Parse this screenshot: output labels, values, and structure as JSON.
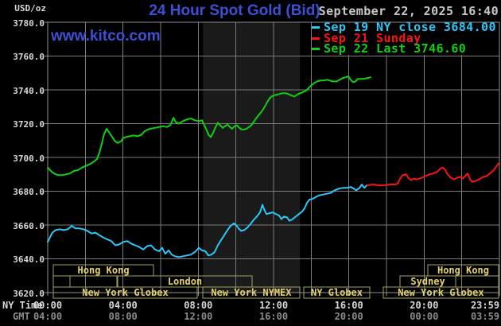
{
  "header": {
    "units": "USD/oz",
    "title": "24 Hour Spot Gold (Bid)",
    "timestamp": "September 22, 2025 16:40",
    "watermark": "www.kitco.com"
  },
  "colors": {
    "background": "#000000",
    "title_blue": "#3c50d7",
    "grid": "#7b7b7b",
    "border": "#8f8f8f",
    "band": "#1a1a1a",
    "cyan": "#2bc7f7",
    "red": "#f81414",
    "green": "#0ed10e",
    "session_border": "#a2a263",
    "session_text": "#e5d26b",
    "axis_text": "#d8d8d8",
    "gmt_text": "#8c8c8c",
    "timestamp_text": "#c9c9c9"
  },
  "legend": {
    "items": [
      {
        "label": "Sep 19 NY close 3684.00",
        "color": "#2bc7f7"
      },
      {
        "label": "Sep 21 Sunday",
        "color": "#f81414"
      },
      {
        "label": "Sep 22 Last 3746.60",
        "color": "#0ed10e"
      }
    ]
  },
  "axes": {
    "x_rows": [
      {
        "label": "NY Time",
        "ticks": [
          "00:00",
          "04:00",
          "08:00",
          "12:00",
          "16:00",
          "20:00",
          "23:59"
        ]
      },
      {
        "label": "GMT",
        "ticks": [
          "04:00",
          "08:00",
          "12:00",
          "16:00",
          "20:00",
          "00:00",
          "03:59"
        ]
      }
    ]
  },
  "chart_data": {
    "type": "line",
    "title": "24 Hour Spot Gold (Bid)",
    "ylabel": "USD/oz",
    "xlabel": "NY Time (hours 00:00-23:59)",
    "ylim": [
      3620,
      3780
    ],
    "y_step": 20,
    "xlim_hours": [
      0,
      24
    ],
    "x_gridline_every_hours": 2,
    "grid": true,
    "legend_position": "top-right",
    "highlight_band_hours": [
      8.25,
      13.4
    ],
    "series": [
      {
        "name": "Sep 19 NY close 3684.00",
        "color": "#2bc7f7",
        "points": [
          [
            0,
            3650
          ],
          [
            0.13,
            3653
          ],
          [
            0.25,
            3655.5
          ],
          [
            0.42,
            3657
          ],
          [
            0.63,
            3657.5
          ],
          [
            0.85,
            3657
          ],
          [
            1.06,
            3657.5
          ],
          [
            1.27,
            3659.5
          ],
          [
            1.48,
            3658
          ],
          [
            1.69,
            3658
          ],
          [
            1.9,
            3657.5
          ],
          [
            2.11,
            3656.5
          ],
          [
            2.32,
            3655
          ],
          [
            2.54,
            3655.5
          ],
          [
            2.75,
            3654
          ],
          [
            2.96,
            3652.5
          ],
          [
            3.17,
            3651.5
          ],
          [
            3.38,
            3650.5
          ],
          [
            3.59,
            3648
          ],
          [
            3.8,
            3648.5
          ],
          [
            4.01,
            3650
          ],
          [
            4.23,
            3650.5
          ],
          [
            4.44,
            3649
          ],
          [
            4.65,
            3648
          ],
          [
            4.86,
            3647
          ],
          [
            5.07,
            3645.5
          ],
          [
            5.28,
            3647.5
          ],
          [
            5.49,
            3648
          ],
          [
            5.7,
            3645.5
          ],
          [
            5.92,
            3644.5
          ],
          [
            6.08,
            3646.5
          ],
          [
            6.25,
            3643
          ],
          [
            6.42,
            3645
          ],
          [
            6.59,
            3642.5
          ],
          [
            6.76,
            3641.5
          ],
          [
            6.97,
            3641
          ],
          [
            7.18,
            3641.5
          ],
          [
            7.39,
            3642
          ],
          [
            7.61,
            3642.5
          ],
          [
            7.82,
            3644
          ],
          [
            8.03,
            3646.5
          ],
          [
            8.2,
            3645
          ],
          [
            8.37,
            3644.5
          ],
          [
            8.54,
            3642
          ],
          [
            8.7,
            3642.5
          ],
          [
            8.87,
            3644
          ],
          [
            9.04,
            3648
          ],
          [
            9.21,
            3651
          ],
          [
            9.38,
            3654
          ],
          [
            9.55,
            3657
          ],
          [
            9.72,
            3659.5
          ],
          [
            9.89,
            3661
          ],
          [
            10.01,
            3660
          ],
          [
            10.14,
            3658
          ],
          [
            10.27,
            3656.5
          ],
          [
            10.44,
            3657
          ],
          [
            10.61,
            3658.5
          ],
          [
            10.77,
            3660.5
          ],
          [
            10.94,
            3663
          ],
          [
            11.11,
            3665
          ],
          [
            11.28,
            3667.5
          ],
          [
            11.41,
            3672
          ],
          [
            11.49,
            3669.5
          ],
          [
            11.62,
            3666.5
          ],
          [
            11.79,
            3667
          ],
          [
            11.96,
            3667.5
          ],
          [
            12.13,
            3666.5
          ],
          [
            12.3,
            3665.5
          ],
          [
            12.42,
            3663.5
          ],
          [
            12.55,
            3665
          ],
          [
            12.72,
            3664.5
          ],
          [
            12.84,
            3662.5
          ],
          [
            13.01,
            3663.5
          ],
          [
            13.18,
            3665
          ],
          [
            13.35,
            3666.5
          ],
          [
            13.52,
            3668
          ],
          [
            13.65,
            3670
          ],
          [
            13.77,
            3673
          ],
          [
            13.9,
            3675
          ],
          [
            14.07,
            3675.5
          ],
          [
            14.24,
            3676.5
          ],
          [
            14.41,
            3677.5
          ],
          [
            14.62,
            3678
          ],
          [
            14.83,
            3678.5
          ],
          [
            15.04,
            3679
          ],
          [
            15.25,
            3680.5
          ],
          [
            15.46,
            3681.5
          ],
          [
            15.68,
            3682
          ],
          [
            15.89,
            3682
          ],
          [
            16.1,
            3682.5
          ],
          [
            16.27,
            3681.5
          ],
          [
            16.39,
            3680.5
          ],
          [
            16.57,
            3682
          ],
          [
            16.69,
            3684
          ],
          [
            16.82,
            3682
          ],
          [
            16.95,
            3683.5
          ]
        ]
      },
      {
        "name": "Sep 21 Sunday",
        "color": "#f81414",
        "points": [
          [
            16.99,
            3683.5
          ],
          [
            17.3,
            3684
          ],
          [
            17.6,
            3683.5
          ],
          [
            17.9,
            3683.5
          ],
          [
            18.2,
            3684
          ],
          [
            18.45,
            3684
          ],
          [
            18.59,
            3684.5
          ],
          [
            18.7,
            3687
          ],
          [
            18.85,
            3689.5
          ],
          [
            19.05,
            3690
          ],
          [
            19.15,
            3688
          ],
          [
            19.3,
            3686.5
          ],
          [
            19.45,
            3687.5
          ],
          [
            19.6,
            3687
          ],
          [
            19.75,
            3687.5
          ],
          [
            19.9,
            3688
          ],
          [
            20.07,
            3689
          ],
          [
            20.28,
            3690
          ],
          [
            20.49,
            3690.5
          ],
          [
            20.7,
            3691.5
          ],
          [
            20.87,
            3693.5
          ],
          [
            21,
            3694
          ],
          [
            21.13,
            3692.5
          ],
          [
            21.25,
            3690
          ],
          [
            21.42,
            3688
          ],
          [
            21.59,
            3687
          ],
          [
            21.76,
            3688
          ],
          [
            21.93,
            3688.5
          ],
          [
            22.06,
            3687.5
          ],
          [
            22.18,
            3689
          ],
          [
            22.31,
            3690.5
          ],
          [
            22.44,
            3687
          ],
          [
            22.56,
            3685.5
          ],
          [
            22.69,
            3686
          ],
          [
            22.82,
            3686.5
          ],
          [
            22.99,
            3687.5
          ],
          [
            23.16,
            3688.5
          ],
          [
            23.33,
            3689
          ],
          [
            23.49,
            3690.5
          ],
          [
            23.66,
            3692
          ],
          [
            23.83,
            3694.5
          ],
          [
            23.96,
            3696.5
          ]
        ]
      },
      {
        "name": "Sep 22 Last 3746.60",
        "color": "#0ed10e",
        "points": [
          [
            0,
            3694
          ],
          [
            0.17,
            3692
          ],
          [
            0.34,
            3690.5
          ],
          [
            0.55,
            3689.5
          ],
          [
            0.76,
            3689.5
          ],
          [
            0.97,
            3690
          ],
          [
            1.18,
            3690.5
          ],
          [
            1.39,
            3692
          ],
          [
            1.61,
            3692.5
          ],
          [
            1.82,
            3694
          ],
          [
            2.03,
            3695
          ],
          [
            2.24,
            3696
          ],
          [
            2.45,
            3697.5
          ],
          [
            2.62,
            3699
          ],
          [
            2.75,
            3703
          ],
          [
            2.87,
            3708
          ],
          [
            3,
            3714
          ],
          [
            3.13,
            3717
          ],
          [
            3.25,
            3715
          ],
          [
            3.38,
            3713
          ],
          [
            3.55,
            3710
          ],
          [
            3.72,
            3708.5
          ],
          [
            3.89,
            3709.5
          ],
          [
            4.01,
            3711.5
          ],
          [
            4.14,
            3712
          ],
          [
            4.35,
            3712.5
          ],
          [
            4.56,
            3713
          ],
          [
            4.77,
            3712.5
          ],
          [
            4.99,
            3713.5
          ],
          [
            5.15,
            3715.5
          ],
          [
            5.32,
            3716.5
          ],
          [
            5.49,
            3717
          ],
          [
            5.7,
            3717.5
          ],
          [
            5.92,
            3718
          ],
          [
            6.13,
            3718.5
          ],
          [
            6.34,
            3718
          ],
          [
            6.51,
            3719
          ],
          [
            6.68,
            3723.5
          ],
          [
            6.8,
            3721
          ],
          [
            6.97,
            3720
          ],
          [
            7.18,
            3721.5
          ],
          [
            7.39,
            3722.5
          ],
          [
            7.61,
            3723
          ],
          [
            7.82,
            3722
          ],
          [
            8.03,
            3721.5
          ],
          [
            8.2,
            3722
          ],
          [
            8.32,
            3719
          ],
          [
            8.45,
            3716
          ],
          [
            8.54,
            3713.5
          ],
          [
            8.66,
            3712
          ],
          [
            8.79,
            3714.5
          ],
          [
            8.92,
            3718
          ],
          [
            9.04,
            3720.5
          ],
          [
            9.17,
            3719
          ],
          [
            9.3,
            3717.5
          ],
          [
            9.42,
            3718.5
          ],
          [
            9.55,
            3719.5
          ],
          [
            9.68,
            3718
          ],
          [
            9.8,
            3717
          ],
          [
            9.93,
            3718.5
          ],
          [
            10.06,
            3719
          ],
          [
            10.18,
            3717.5
          ],
          [
            10.31,
            3716.5
          ],
          [
            10.44,
            3716.5
          ],
          [
            10.56,
            3717
          ],
          [
            10.69,
            3718
          ],
          [
            10.82,
            3719
          ],
          [
            10.94,
            3721
          ],
          [
            11.07,
            3723
          ],
          [
            11.2,
            3725
          ],
          [
            11.32,
            3726.5
          ],
          [
            11.45,
            3728.5
          ],
          [
            11.58,
            3731
          ],
          [
            11.7,
            3733.5
          ],
          [
            11.83,
            3735.5
          ],
          [
            11.96,
            3736.5
          ],
          [
            12.13,
            3737
          ],
          [
            12.3,
            3737.5
          ],
          [
            12.46,
            3738
          ],
          [
            12.68,
            3738
          ],
          [
            12.89,
            3737
          ],
          [
            13.1,
            3736
          ],
          [
            13.31,
            3737.5
          ],
          [
            13.52,
            3738.5
          ],
          [
            13.73,
            3739.5
          ],
          [
            13.94,
            3742
          ],
          [
            14.15,
            3744
          ],
          [
            14.32,
            3745
          ],
          [
            14.49,
            3745.5
          ],
          [
            14.66,
            3745.5
          ],
          [
            14.83,
            3746
          ],
          [
            15,
            3745.5
          ],
          [
            15.17,
            3745
          ],
          [
            15.34,
            3745
          ],
          [
            15.51,
            3746
          ],
          [
            15.68,
            3747
          ],
          [
            15.84,
            3747.5
          ],
          [
            15.97,
            3748
          ],
          [
            16.1,
            3746
          ],
          [
            16.23,
            3744.5
          ],
          [
            16.35,
            3745
          ],
          [
            16.48,
            3746.5
          ],
          [
            16.65,
            3746.5
          ],
          [
            16.82,
            3746.5
          ],
          [
            16.99,
            3747
          ],
          [
            17.15,
            3747.5
          ]
        ]
      }
    ],
    "sessions": {
      "rows": [
        {
          "items": [
            {
              "label": "Hong Kong",
              "start": 0.3,
              "end": 5.62
            },
            {
              "label": "Hong Kong",
              "start": 20.2,
              "end": 23.95
            }
          ]
        },
        {
          "items": [
            {
              "label": "",
              "start": 0.3,
              "end": 1.18
            },
            {
              "label": "",
              "start": 1.18,
              "end": 3.68
            },
            {
              "label": "London",
              "start": 3.72,
              "end": 10.86
            },
            {
              "label": "Sydney",
              "start": 18.72,
              "end": 21.68
            },
            {
              "label": "",
              "start": 21.68,
              "end": 23.95
            }
          ]
        },
        {
          "items": [
            {
              "label": "New York Globex",
              "start": 0.3,
              "end": 7.94
            },
            {
              "label": "New York NYMEX",
              "start": 8.24,
              "end": 13.39
            },
            {
              "label": "NY Globex",
              "start": 13.61,
              "end": 17.11
            },
            {
              "label": "New York Globex",
              "start": 17.83,
              "end": 23.95
            }
          ]
        }
      ]
    }
  }
}
